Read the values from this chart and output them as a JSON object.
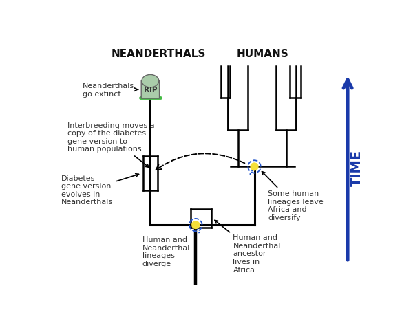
{
  "title_neanderthals": "NEANDERTHALS",
  "title_humans": "HUMANS",
  "title_time": "TIME",
  "bg_color": "#ffffff",
  "tc": "#000000",
  "time_arrow_color": "#1a3aaa",
  "dot_yellow": "#f5e03a",
  "dot_blue_border": "#2255cc",
  "label_go_extinct": "Neanderthals\ngo extinct",
  "label_interbreeding": "Interbreeding moves a\ncopy of the diabetes\ngene version to\nhuman populations",
  "label_diabetes": "Diabetes\ngene version\nevolves in\nNeanderthals",
  "label_some_human": "Some human\nlineages leave\nAfrica and\ndiversify",
  "label_diverge": "Human and\nNeanderthal\nlineages\ndiverge",
  "label_ancestor": "Human and\nNeanderthal\nancestor\nlives in\nAfrica"
}
